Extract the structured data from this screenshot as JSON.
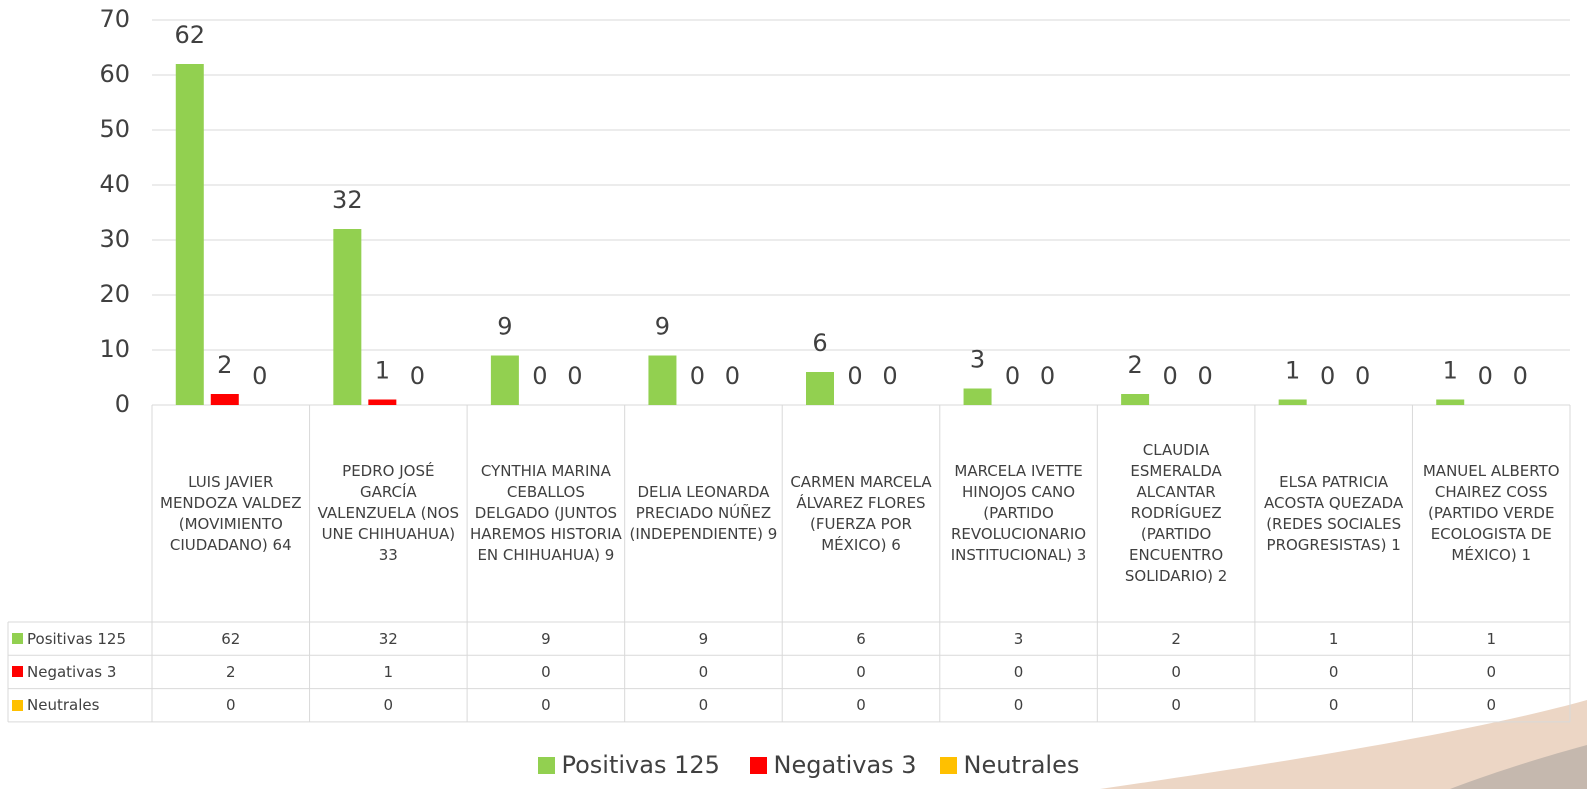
{
  "chart_data": {
    "type": "bar",
    "categories": [
      "LUIS JAVIER MENDOZA VALDEZ (MOVIMIENTO CIUDADANO) 64",
      "PEDRO JOSÉ GARCÍA VALENZUELA (NOS UNE CHIHUAHUA) 33",
      "CYNTHIA MARINA CEBALLOS DELGADO (JUNTOS HAREMOS HISTORIA EN CHIHUAHUA) 9",
      "DELIA LEONARDA PRECIADO NÚÑEZ (INDEPENDIENTE) 9",
      "CARMEN MARCELA ÁLVAREZ FLORES (FUERZA POR MÉXICO) 6",
      "MARCELA IVETTE HINOJOS CANO (PARTIDO REVOLUCIONARIO INSTITUCIONAL) 3",
      "CLAUDIA ESMERALDA ALCANTAR RODRÍGUEZ (PARTIDO ENCUENTRO SOLIDARIO) 2",
      "ELSA PATRICIA ACOSTA QUEZADA (REDES SOCIALES PROGRESISTAS) 1",
      "MANUEL ALBERTO CHAIREZ COSS (PARTIDO VERDE ECOLOGISTA DE MÉXICO) 1"
    ],
    "series": [
      {
        "name": "Positivas 125",
        "color": "#92d050",
        "values": [
          62,
          32,
          9,
          9,
          6,
          3,
          2,
          1,
          1
        ]
      },
      {
        "name": "Negativas 3",
        "color": "#ff0000",
        "values": [
          2,
          1,
          0,
          0,
          0,
          0,
          0,
          0,
          0
        ]
      },
      {
        "name": "Neutrales",
        "color": "#ffc000",
        "values": [
          0,
          0,
          0,
          0,
          0,
          0,
          0,
          0,
          0
        ]
      }
    ],
    "ylim": [
      0,
      70
    ],
    "yticks": [
      0,
      10,
      20,
      30,
      40,
      50,
      60,
      70
    ],
    "grid": true,
    "legend": "bottom"
  }
}
